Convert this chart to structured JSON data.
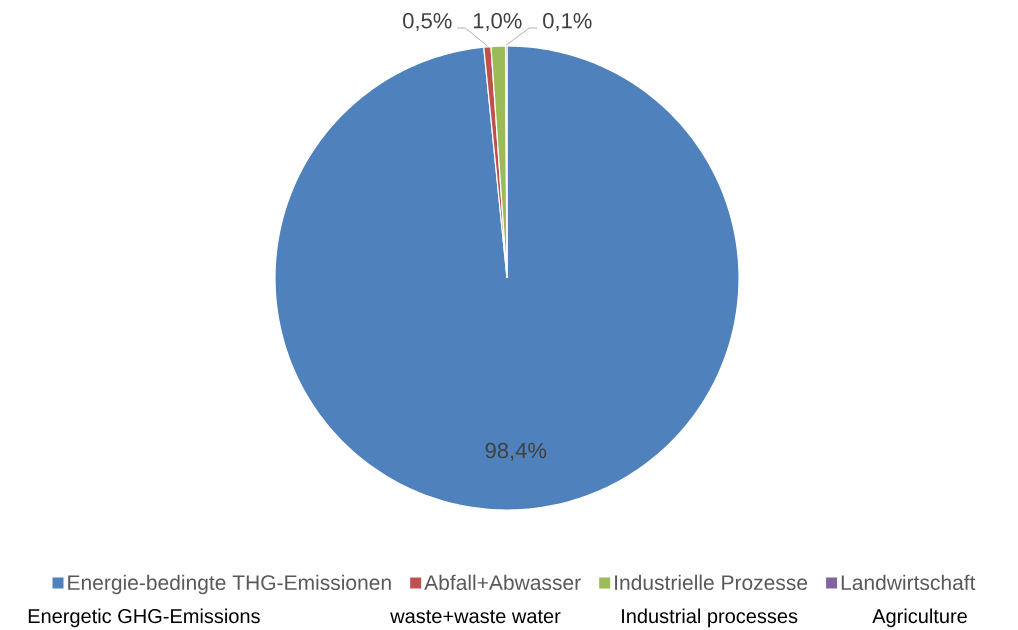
{
  "chart_data": {
    "type": "pie",
    "categories": [
      "Energie-bedingte THG-Emissionen",
      "Abfall+Abwasser",
      "Industrielle Prozesse",
      "Landwirtschaft"
    ],
    "values": [
      98.4,
      0.5,
      1.0,
      0.1
    ],
    "colors": [
      "#4f81bd",
      "#c0504d",
      "#9bbb59",
      "#8064a2"
    ],
    "value_labels": [
      "98,4%",
      "0,5%",
      "1,0%",
      "0,1%"
    ],
    "legend": "bottom",
    "annotations": [
      "Energetic GHG-Emissions",
      "waste+waste water",
      "Industrial processes",
      "Agriculture"
    ]
  }
}
